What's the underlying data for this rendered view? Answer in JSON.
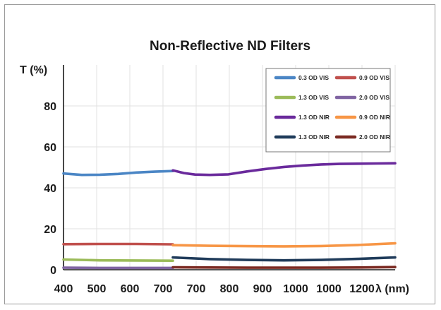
{
  "chart_data": {
    "type": "line",
    "title": "Non-Reflective ND Filters",
    "xlabel": "λ (nm)",
    "ylabel": "T (%)",
    "ylim": [
      0,
      100
    ],
    "y_ticks": [
      0,
      20,
      40,
      60,
      80
    ],
    "x_ticks": [
      "400",
      "500",
      "600",
      "700",
      "700",
      "800",
      "900",
      "1000",
      "1000",
      "1200"
    ],
    "grid": true,
    "legend_position": "top-right",
    "series": [
      {
        "name": "0.3 OD VIS",
        "color": "#4b86c5",
        "x": [
          400,
          450,
          500,
          550,
          600,
          650,
          700
        ],
        "y": [
          47,
          46.3,
          46.4,
          46.8,
          47.5,
          47.9,
          48.2
        ]
      },
      {
        "name": "0.9 OD VIS",
        "color": "#c0504d",
        "x": [
          400,
          500,
          600,
          700
        ],
        "y": [
          12.5,
          12.6,
          12.6,
          12.4
        ]
      },
      {
        "name": "1.3 OD VIS",
        "color": "#9bbb59",
        "x": [
          400,
          500,
          600,
          700
        ],
        "y": [
          5.0,
          4.6,
          4.5,
          4.4
        ]
      },
      {
        "name": "2.0 OD VIS",
        "color": "#8064a2",
        "x": [
          400,
          500,
          600,
          700
        ],
        "y": [
          1.0,
          0.9,
          0.9,
          0.9
        ]
      },
      {
        "name": "1.3 OD NIR",
        "color": "#6a2a9c",
        "x": [
          700,
          730,
          760,
          800,
          850,
          900,
          950,
          1000,
          1050,
          1100,
          1150,
          1200,
          1250,
          1300
        ],
        "y": [
          48.5,
          47.2,
          46.5,
          46.3,
          46.6,
          48.0,
          49.2,
          50.2,
          50.9,
          51.4,
          51.7,
          51.8,
          51.9,
          52.0
        ]
      },
      {
        "name": "0.9 OD NIR",
        "color": "#f79646",
        "x": [
          700,
          800,
          900,
          1000,
          1100,
          1200,
          1300
        ],
        "y": [
          12.0,
          11.7,
          11.5,
          11.4,
          11.6,
          12.1,
          12.9
        ]
      },
      {
        "name": "1.3 OD NIR",
        "color": "#1f3b5a",
        "x": [
          700,
          800,
          900,
          1000,
          1100,
          1200,
          1300
        ],
        "y": [
          6.0,
          5.2,
          4.8,
          4.6,
          4.8,
          5.3,
          6.0
        ]
      },
      {
        "name": "2.0 OD NIR",
        "color": "#7b2a22",
        "x": [
          700,
          800,
          900,
          1000,
          1100,
          1200,
          1300
        ],
        "y": [
          1.2,
          1.1,
          1.0,
          1.0,
          1.0,
          1.1,
          1.3
        ]
      }
    ]
  }
}
